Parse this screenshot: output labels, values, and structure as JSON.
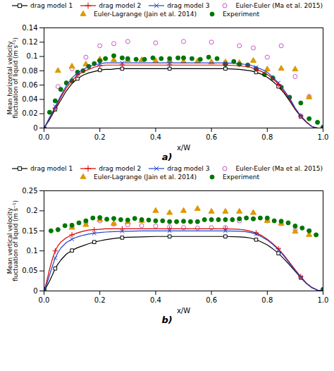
{
  "chart_data": [
    {
      "type": "line",
      "title": "a)",
      "xlabel": "x/W",
      "ylabel": "Mean horizontal velocity\nfluctuation of liquid (m s⁻¹)",
      "xlim": [
        0,
        1
      ],
      "xticks": [
        {
          "value": 0,
          "label": "0.0"
        },
        {
          "value": 0.2,
          "label": "0.2"
        },
        {
          "value": 0.4,
          "label": "0.4"
        },
        {
          "value": 0.6,
          "label": "0.6"
        },
        {
          "value": 0.8,
          "label": "0.8"
        },
        {
          "value": 1,
          "label": "1.0"
        }
      ],
      "ylim": [
        0,
        0.14
      ],
      "yticks": [
        0,
        0.02,
        0.04,
        0.06,
        0.08,
        0.1,
        0.12,
        0.14
      ],
      "grid": false,
      "legend": "top",
      "series": [
        {
          "name": "drag model 1",
          "type": "line",
          "marker": "square",
          "color": "#000000",
          "x": [
            0.0,
            0.01,
            0.02,
            0.03,
            0.04,
            0.06,
            0.08,
            0.1,
            0.12,
            0.14,
            0.16,
            0.18,
            0.2,
            0.22,
            0.24,
            0.26,
            0.28,
            0.3,
            0.35,
            0.4,
            0.45,
            0.5,
            0.55,
            0.6,
            0.65,
            0.7,
            0.72,
            0.74,
            0.76,
            0.78,
            0.8,
            0.82,
            0.84,
            0.86,
            0.88,
            0.9,
            0.92,
            0.94,
            0.96,
            0.98,
            1.0
          ],
          "values": [
            0.0,
            0.006,
            0.012,
            0.019,
            0.026,
            0.039,
            0.052,
            0.062,
            0.069,
            0.074,
            0.077,
            0.079,
            0.081,
            0.082,
            0.082,
            0.083,
            0.083,
            0.083,
            0.083,
            0.083,
            0.083,
            0.083,
            0.083,
            0.083,
            0.083,
            0.082,
            0.081,
            0.08,
            0.078,
            0.075,
            0.071,
            0.065,
            0.058,
            0.049,
            0.038,
            0.026,
            0.016,
            0.008,
            0.002,
            0.0,
            0.0
          ]
        },
        {
          "name": "drag model 2",
          "type": "line",
          "marker": "plus",
          "color": "#dd0000",
          "x": [
            0.0,
            0.01,
            0.02,
            0.03,
            0.04,
            0.06,
            0.08,
            0.1,
            0.12,
            0.14,
            0.16,
            0.18,
            0.2,
            0.22,
            0.24,
            0.26,
            0.28,
            0.3,
            0.35,
            0.4,
            0.45,
            0.5,
            0.55,
            0.6,
            0.65,
            0.7,
            0.72,
            0.74,
            0.76,
            0.78,
            0.8,
            0.82,
            0.84,
            0.86,
            0.88,
            0.9,
            0.92,
            0.94,
            0.96,
            0.98,
            1.0
          ],
          "values": [
            0.0,
            0.007,
            0.014,
            0.021,
            0.028,
            0.043,
            0.056,
            0.066,
            0.074,
            0.079,
            0.082,
            0.085,
            0.087,
            0.088,
            0.088,
            0.088,
            0.088,
            0.088,
            0.088,
            0.088,
            0.088,
            0.088,
            0.088,
            0.088,
            0.088,
            0.087,
            0.086,
            0.085,
            0.082,
            0.079,
            0.075,
            0.069,
            0.061,
            0.051,
            0.04,
            0.027,
            0.017,
            0.008,
            0.002,
            0.0,
            0.0
          ]
        },
        {
          "name": "drag model 3",
          "type": "line",
          "marker": "x",
          "color": "#2244cc",
          "x": [
            0.0,
            0.01,
            0.02,
            0.03,
            0.04,
            0.06,
            0.08,
            0.1,
            0.12,
            0.14,
            0.16,
            0.18,
            0.2,
            0.22,
            0.24,
            0.26,
            0.28,
            0.3,
            0.35,
            0.4,
            0.45,
            0.5,
            0.55,
            0.6,
            0.65,
            0.7,
            0.72,
            0.74,
            0.76,
            0.78,
            0.8,
            0.82,
            0.84,
            0.86,
            0.88,
            0.9,
            0.92,
            0.94,
            0.96,
            0.98,
            1.0
          ],
          "values": [
            0.0,
            0.007,
            0.015,
            0.022,
            0.03,
            0.045,
            0.059,
            0.07,
            0.077,
            0.082,
            0.086,
            0.088,
            0.09,
            0.091,
            0.091,
            0.091,
            0.091,
            0.091,
            0.091,
            0.091,
            0.091,
            0.091,
            0.091,
            0.091,
            0.091,
            0.09,
            0.089,
            0.088,
            0.085,
            0.082,
            0.078,
            0.071,
            0.063,
            0.053,
            0.042,
            0.028,
            0.017,
            0.009,
            0.002,
            0.0,
            0.0
          ]
        },
        {
          "name": "Euler-Euler (Ma et al. 2015)",
          "type": "scatter",
          "marker": "open-circle",
          "color": "#cc55cc",
          "x": [
            0.05,
            0.1,
            0.15,
            0.2,
            0.25,
            0.3,
            0.4,
            0.5,
            0.6,
            0.7,
            0.75,
            0.8,
            0.85,
            0.9,
            0.95
          ],
          "values": [
            0.058,
            0.083,
            0.099,
            0.115,
            0.118,
            0.121,
            0.119,
            0.121,
            0.12,
            0.115,
            0.112,
            0.099,
            0.115,
            0.072,
            0.044
          ]
        },
        {
          "name": "Euler-Lagrange (Jain et al. 2014)",
          "type": "scatter",
          "marker": "triangle",
          "color": "#dd9900",
          "x": [
            0.05,
            0.1,
            0.15,
            0.2,
            0.25,
            0.3,
            0.35,
            0.4,
            0.45,
            0.5,
            0.55,
            0.6,
            0.65,
            0.7,
            0.75,
            0.8,
            0.85,
            0.9,
            0.95
          ],
          "values": [
            0.08,
            0.086,
            0.089,
            0.096,
            0.095,
            0.095,
            0.095,
            0.094,
            0.094,
            0.093,
            0.093,
            0.092,
            0.092,
            0.091,
            0.094,
            0.082,
            0.083,
            0.082,
            0.043
          ]
        },
        {
          "name": "Experiment",
          "type": "scatter",
          "marker": "circle",
          "color": "#007700",
          "x": [
            0.0,
            0.02,
            0.04,
            0.06,
            0.08,
            0.1,
            0.12,
            0.14,
            0.16,
            0.18,
            0.2,
            0.22,
            0.25,
            0.28,
            0.3,
            0.33,
            0.36,
            0.39,
            0.42,
            0.45,
            0.48,
            0.5,
            0.53,
            0.56,
            0.59,
            0.62,
            0.65,
            0.68,
            0.7,
            0.73,
            0.76,
            0.79,
            0.82,
            0.85,
            0.88,
            0.92,
            0.95,
            0.98,
            1.0
          ],
          "values": [
            0.0,
            0.022,
            0.038,
            0.054,
            0.063,
            0.066,
            0.078,
            0.08,
            0.086,
            0.09,
            0.094,
            0.097,
            0.101,
            0.098,
            0.097,
            0.096,
            0.096,
            0.098,
            0.097,
            0.097,
            0.098,
            0.098,
            0.097,
            0.096,
            0.099,
            0.097,
            0.089,
            0.093,
            0.089,
            0.088,
            0.083,
            0.075,
            0.07,
            0.057,
            0.043,
            0.035,
            0.013,
            0.008,
            0.001
          ]
        }
      ]
    },
    {
      "type": "line",
      "title": "b)",
      "xlabel": "x/W",
      "ylabel": "Mean vertical velocity\nfluctuation of liquid (m s⁻¹)",
      "xlim": [
        0,
        1
      ],
      "xticks": [
        {
          "value": 0,
          "label": "0.0"
        },
        {
          "value": 0.2,
          "label": "0.2"
        },
        {
          "value": 0.4,
          "label": "0.4"
        },
        {
          "value": 0.6,
          "label": "0.6"
        },
        {
          "value": 0.8,
          "label": "0.8"
        },
        {
          "value": 1,
          "label": "1.0"
        }
      ],
      "ylim": [
        0,
        0.25
      ],
      "yticks": [
        0,
        0.05,
        0.1,
        0.15,
        0.2,
        0.25
      ],
      "grid": false,
      "legend": "top",
      "series": [
        {
          "name": "drag model 1",
          "type": "line",
          "marker": "square",
          "color": "#000000",
          "x": [
            0.0,
            0.01,
            0.02,
            0.03,
            0.04,
            0.05,
            0.06,
            0.08,
            0.1,
            0.12,
            0.14,
            0.16,
            0.18,
            0.2,
            0.22,
            0.25,
            0.28,
            0.3,
            0.35,
            0.4,
            0.45,
            0.5,
            0.55,
            0.6,
            0.65,
            0.7,
            0.72,
            0.74,
            0.76,
            0.78,
            0.8,
            0.82,
            0.84,
            0.86,
            0.88,
            0.9,
            0.92,
            0.94,
            0.96,
            0.98,
            1.0
          ],
          "values": [
            0.0,
            0.012,
            0.025,
            0.04,
            0.056,
            0.067,
            0.077,
            0.092,
            0.101,
            0.108,
            0.113,
            0.118,
            0.122,
            0.125,
            0.128,
            0.131,
            0.133,
            0.134,
            0.135,
            0.136,
            0.136,
            0.136,
            0.136,
            0.136,
            0.136,
            0.135,
            0.134,
            0.132,
            0.128,
            0.122,
            0.115,
            0.105,
            0.094,
            0.08,
            0.065,
            0.049,
            0.033,
            0.019,
            0.008,
            0.002,
            0.0
          ]
        },
        {
          "name": "drag model 2",
          "type": "line",
          "marker": "plus",
          "color": "#dd0000",
          "x": [
            0.0,
            0.01,
            0.02,
            0.03,
            0.04,
            0.05,
            0.06,
            0.08,
            0.1,
            0.12,
            0.14,
            0.16,
            0.18,
            0.2,
            0.22,
            0.25,
            0.28,
            0.3,
            0.35,
            0.4,
            0.45,
            0.5,
            0.55,
            0.6,
            0.65,
            0.7,
            0.72,
            0.74,
            0.76,
            0.78,
            0.8,
            0.82,
            0.84,
            0.86,
            0.88,
            0.9,
            0.92,
            0.94,
            0.96,
            0.98,
            1.0
          ],
          "values": [
            0.0,
            0.025,
            0.055,
            0.08,
            0.1,
            0.113,
            0.122,
            0.133,
            0.14,
            0.145,
            0.149,
            0.152,
            0.153,
            0.154,
            0.155,
            0.155,
            0.155,
            0.155,
            0.155,
            0.155,
            0.155,
            0.155,
            0.155,
            0.155,
            0.155,
            0.154,
            0.152,
            0.149,
            0.145,
            0.138,
            0.129,
            0.118,
            0.105,
            0.089,
            0.071,
            0.053,
            0.036,
            0.02,
            0.009,
            0.002,
            0.0
          ]
        },
        {
          "name": "drag model 3",
          "type": "line",
          "marker": "x",
          "color": "#2244cc",
          "x": [
            0.0,
            0.01,
            0.02,
            0.03,
            0.04,
            0.05,
            0.06,
            0.08,
            0.1,
            0.12,
            0.14,
            0.16,
            0.18,
            0.2,
            0.22,
            0.25,
            0.28,
            0.3,
            0.35,
            0.4,
            0.45,
            0.5,
            0.55,
            0.6,
            0.65,
            0.7,
            0.72,
            0.74,
            0.76,
            0.78,
            0.8,
            0.82,
            0.84,
            0.86,
            0.88,
            0.9,
            0.92,
            0.94,
            0.96,
            0.98,
            1.0
          ],
          "values": [
            0.0,
            0.018,
            0.04,
            0.062,
            0.082,
            0.096,
            0.107,
            0.121,
            0.129,
            0.135,
            0.139,
            0.142,
            0.144,
            0.146,
            0.147,
            0.148,
            0.149,
            0.149,
            0.15,
            0.15,
            0.15,
            0.15,
            0.15,
            0.15,
            0.15,
            0.149,
            0.148,
            0.146,
            0.142,
            0.135,
            0.127,
            0.116,
            0.103,
            0.087,
            0.069,
            0.051,
            0.034,
            0.019,
            0.008,
            0.002,
            0.0
          ]
        },
        {
          "name": "Euler-Euler (Ma et al. 2015)",
          "type": "scatter",
          "marker": "open-circle",
          "color": "#cc55cc",
          "x": [
            0.1,
            0.15,
            0.2,
            0.25,
            0.3,
            0.35,
            0.4,
            0.45,
            0.5,
            0.55,
            0.6,
            0.65,
            0.7,
            0.75,
            0.8,
            0.85,
            0.9,
            0.95
          ],
          "values": [
            0.16,
            0.17,
            0.175,
            0.167,
            0.165,
            0.163,
            0.162,
            0.16,
            0.158,
            0.157,
            0.158,
            0.158,
            0.175,
            0.18,
            0.175,
            0.168,
            0.153,
            0.15
          ]
        },
        {
          "name": "Euler-Lagrange (Jain et al. 2014)",
          "type": "scatter",
          "marker": "triangle",
          "color": "#dd9900",
          "x": [
            0.1,
            0.15,
            0.2,
            0.25,
            0.3,
            0.35,
            0.4,
            0.45,
            0.5,
            0.55,
            0.6,
            0.65,
            0.7,
            0.75,
            0.8,
            0.85,
            0.9,
            0.95
          ],
          "values": [
            0.158,
            0.165,
            0.178,
            0.168,
            0.172,
            0.175,
            0.2,
            0.195,
            0.2,
            0.205,
            0.198,
            0.198,
            0.198,
            0.195,
            0.175,
            0.168,
            0.148,
            0.14
          ]
        },
        {
          "name": "Experiment",
          "type": "scatter",
          "marker": "circle",
          "color": "#007700",
          "x": [
            0.0,
            0.025,
            0.05,
            0.075,
            0.1,
            0.125,
            0.15,
            0.175,
            0.2,
            0.225,
            0.25,
            0.275,
            0.3,
            0.325,
            0.35,
            0.375,
            0.4,
            0.425,
            0.45,
            0.475,
            0.5,
            0.525,
            0.55,
            0.575,
            0.6,
            0.625,
            0.65,
            0.675,
            0.7,
            0.725,
            0.75,
            0.775,
            0.8,
            0.825,
            0.85,
            0.875,
            0.9,
            0.925,
            0.95,
            0.975,
            1.0
          ],
          "values": [
            0.004,
            0.15,
            0.153,
            0.163,
            0.164,
            0.17,
            0.175,
            0.182,
            0.183,
            0.179,
            0.181,
            0.178,
            0.177,
            0.181,
            0.178,
            0.177,
            0.175,
            0.175,
            0.173,
            0.173,
            0.174,
            0.173,
            0.173,
            0.178,
            0.178,
            0.178,
            0.178,
            0.178,
            0.18,
            0.182,
            0.18,
            0.182,
            0.182,
            0.175,
            0.174,
            0.17,
            0.162,
            0.157,
            0.15,
            0.14,
            0.004
          ]
        }
      ]
    }
  ]
}
